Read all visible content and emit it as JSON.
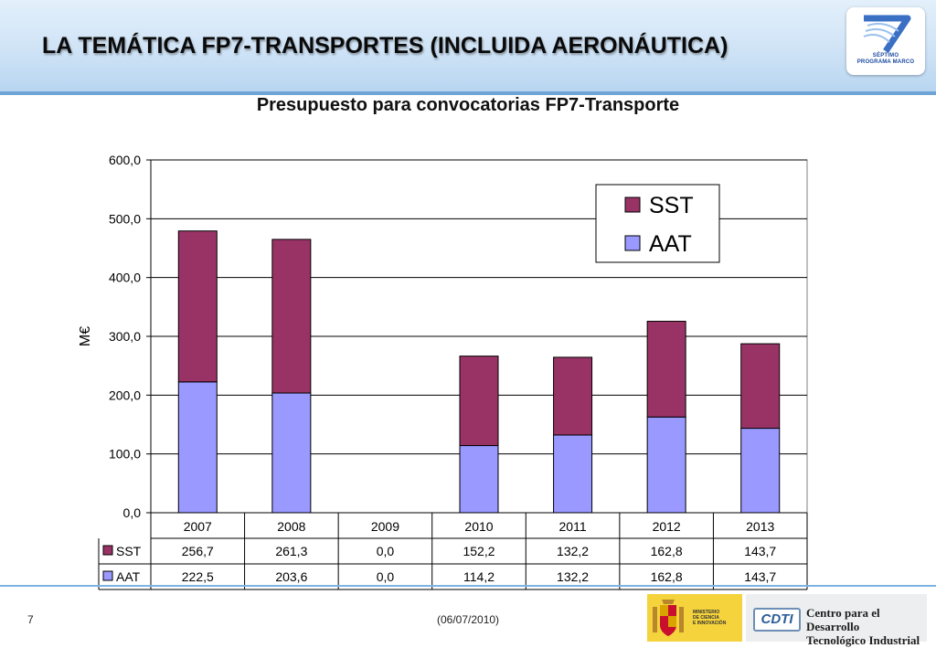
{
  "slide": {
    "title": "LA TEMÁTICA FP7-TRANSPORTES (INCLUIDA AERONÁUTICA)",
    "page_number": "7",
    "date": "(06/07/2010)"
  },
  "logos": {
    "fp7_line1": "SÉPTIMO",
    "fp7_line2": "PROGRAMA MARCO",
    "ministerio_lines": [
      "MINISTERIO",
      "DE CIENCIA",
      "E INNOVACIÓN"
    ],
    "cdti_mark": "CDTI",
    "cdti_line1": "Centro para el Desarrollo",
    "cdti_line2": "Tecnológico Industrial"
  },
  "chart_data": {
    "type": "bar",
    "stacked": true,
    "title": "Presupuesto para convocatorias FP7-Transporte",
    "ylabel": "M€",
    "xlabel": "",
    "ylim": [
      0,
      600
    ],
    "yticks": [
      "0,0",
      "100,0",
      "200,0",
      "300,0",
      "400,0",
      "500,0",
      "600,0"
    ],
    "grid": true,
    "legend_position": "top-right",
    "categories": [
      "2007",
      "2008",
      "2009",
      "2010",
      "2011",
      "2012",
      "2013"
    ],
    "series": [
      {
        "name": "AAT",
        "color": "#9999ff",
        "values": [
          222.5,
          203.6,
          0.0,
          114.2,
          132.2,
          162.8,
          143.7
        ],
        "labels": [
          "222,5",
          "203,6",
          "0,0",
          "114,2",
          "132,2",
          "162,8",
          "143,7"
        ]
      },
      {
        "name": "SST",
        "color": "#993366",
        "values": [
          256.7,
          261.3,
          0.0,
          152.2,
          132.2,
          162.8,
          143.7
        ],
        "labels": [
          "256,7",
          "261,3",
          "0,0",
          "152,2",
          "132,2",
          "162,8",
          "143,7"
        ]
      }
    ],
    "legend_order": [
      "SST",
      "AAT"
    ],
    "table_order": [
      "SST",
      "AAT"
    ]
  }
}
